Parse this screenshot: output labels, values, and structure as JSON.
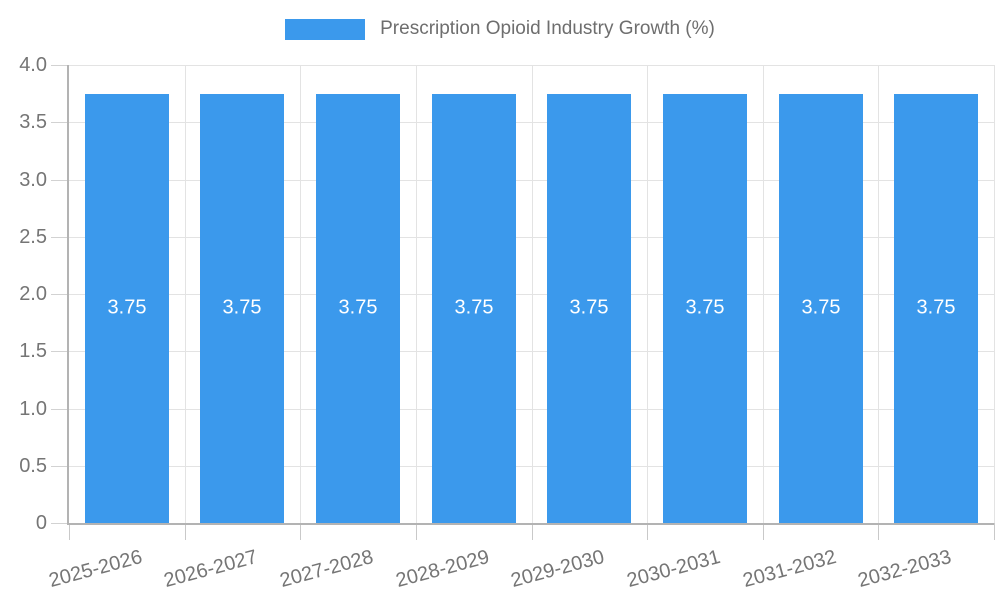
{
  "legend": {
    "label": "Prescription Opioid Industry Growth (%)",
    "swatch_color": "#3b99ec"
  },
  "chart_data": {
    "type": "bar",
    "title": "Prescription Opioid Industry Growth (%)",
    "categories": [
      "2025-2026",
      "2026-2027",
      "2027-2028",
      "2028-2029",
      "2029-2030",
      "2030-2031",
      "2031-2032",
      "2032-2033"
    ],
    "values": [
      3.75,
      3.75,
      3.75,
      3.75,
      3.75,
      3.75,
      3.75,
      3.75
    ],
    "value_labels": [
      "3.75",
      "3.75",
      "3.75",
      "3.75",
      "3.75",
      "3.75",
      "3.75",
      "3.75"
    ],
    "xlabel": "",
    "ylabel": "",
    "ylim": [
      0,
      4
    ],
    "yticks": [
      0,
      0.5,
      1,
      1.5,
      2,
      2.5,
      3,
      3.5,
      4
    ],
    "ytick_labels": [
      "0",
      "0.5",
      "1.0",
      "1.5",
      "2.0",
      "2.5",
      "3.0",
      "3.5",
      "4.0"
    ],
    "grid": true,
    "legend_position": "top",
    "bar_color": "#3b99ec",
    "bar_label_color": "#ffffff",
    "axis_color": "#b3b3b3",
    "grid_color": "#e3e3e3",
    "tick_text_color": "#757575"
  }
}
